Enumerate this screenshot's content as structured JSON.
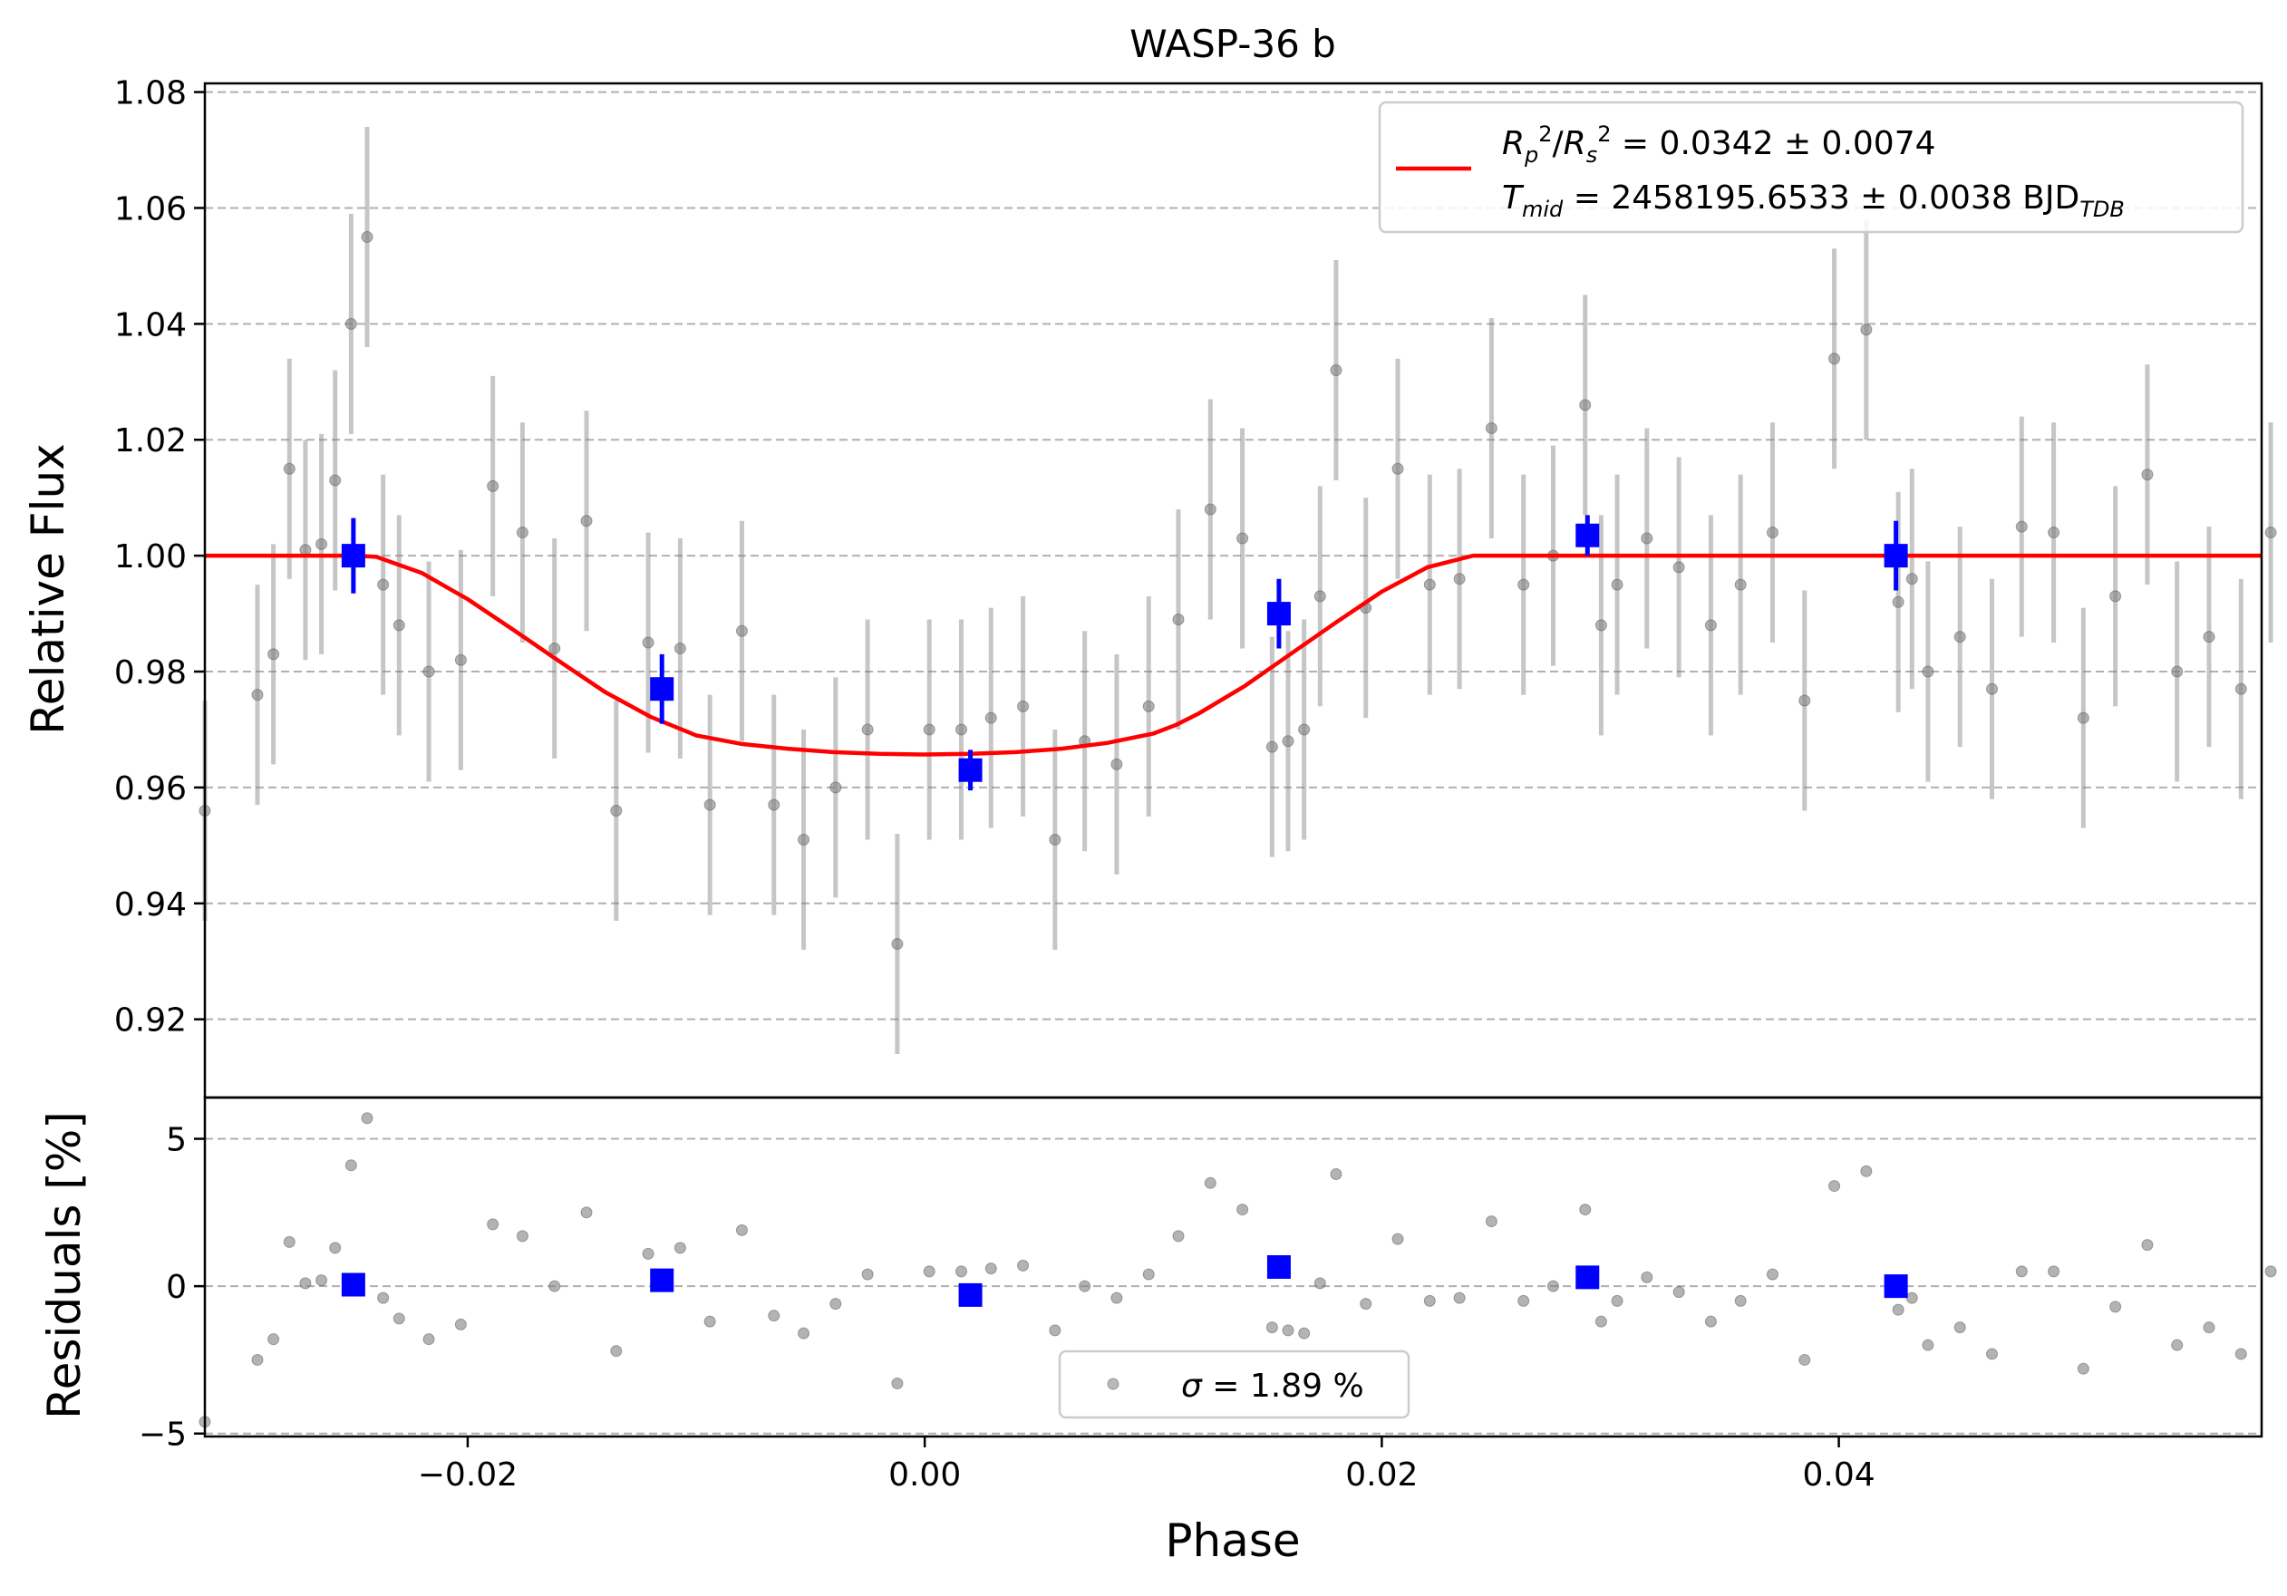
{
  "chart_data": [
    {
      "type": "scatter",
      "title": "WASP-36 b",
      "xlabel": "",
      "ylabel": "Relative Flux",
      "xlim": [
        -0.0315,
        0.0585
      ],
      "ylim": [
        0.9065,
        1.0815
      ],
      "grid": "y-dashed",
      "yticks": [
        0.92,
        0.94,
        0.96,
        0.98,
        1.0,
        1.02,
        1.04,
        1.06,
        1.08
      ],
      "ytick_labels": [
        "0.92",
        "0.94",
        "0.96",
        "0.98",
        "1.00",
        "1.02",
        "1.04",
        "1.06",
        "1.08"
      ],
      "legend_position": "top-right",
      "legend_entries": [
        {
          "line1": {
            "R": "R",
            "p": "p",
            "sq": "2",
            "slash": "/",
            "R2": "R",
            "s": "s",
            "sq2": "2",
            "value": " = 0.0342 ± 0.0074"
          },
          "line2": {
            "T": "T",
            "mid": "mid",
            "value": " = 2458195.6533 ± 0.0038 BJD",
            "tdb": "TDB"
          },
          "color": "#ff0000"
        }
      ],
      "series": [
        {
          "kind": "raw-data",
          "color": "#808080",
          "error": 0.019,
          "x": [
            -0.0315,
            -0.0292,
            -0.0285,
            -0.0278,
            -0.0271,
            -0.0264,
            -0.0258,
            -0.0251,
            -0.0244,
            -0.0237,
            -0.023,
            -0.0217,
            -0.0203,
            -0.0189,
            -0.0176,
            -0.0162,
            -0.0148,
            -0.0135,
            -0.0121,
            -0.0107,
            -0.0094,
            -0.008,
            -0.0066,
            -0.0053,
            -0.0039,
            -0.0025,
            -0.0012,
            0.0002,
            0.0016,
            0.0029,
            0.0043,
            0.0057,
            0.007,
            0.0084,
            0.0098,
            0.0111,
            0.0125,
            0.0139,
            0.0152,
            0.0159,
            0.0166,
            0.0173,
            0.018,
            0.0193,
            0.0207,
            0.0221,
            0.0234,
            0.0248,
            0.0262,
            0.0275,
            0.0289,
            0.0296,
            0.0303,
            0.0316,
            0.033,
            0.0344,
            0.0357,
            0.0371,
            0.0385,
            0.0398,
            0.0412,
            0.0426,
            0.0432,
            0.0439,
            0.0453,
            0.0467,
            0.048,
            0.0494,
            0.0507,
            0.0521,
            0.0535,
            0.0548,
            0.0562,
            0.0576,
            0.0589
          ],
          "y": [
            0.956,
            0.976,
            0.983,
            1.015,
            1.001,
            1.002,
            1.013,
            1.04,
            1.055,
            0.995,
            0.988,
            0.98,
            0.982,
            1.012,
            1.004,
            0.984,
            1.006,
            0.956,
            0.985,
            0.984,
            0.957,
            0.987,
            0.957,
            0.951,
            0.96,
            0.97,
            0.933,
            0.97,
            0.97,
            0.972,
            0.974,
            0.951,
            0.968,
            0.964,
            0.974,
            0.989,
            1.008,
            1.003,
            0.967,
            0.968,
            0.97,
            0.993,
            1.032,
            0.991,
            1.015,
            0.995,
            0.996,
            1.022,
            0.995,
            1.0,
            1.026,
            0.988,
            0.995,
            1.003,
            0.998,
            0.988,
            0.995,
            1.004,
            0.975,
            1.034,
            1.039,
            0.992,
            0.996,
            0.98,
            0.986,
            0.977,
            1.005,
            1.004,
            0.972,
            0.993,
            1.014,
            0.98,
            0.986,
            0.977,
            1.004
          ]
        },
        {
          "kind": "binned",
          "color": "#0000ff",
          "x": [
            -0.025,
            -0.0115,
            0.002,
            0.0155,
            0.029,
            0.0425
          ],
          "y": [
            1.0,
            0.977,
            0.963,
            0.99,
            1.0035,
            1.0
          ],
          "err": [
            0.0065,
            0.006,
            0.0035,
            0.006,
            0.0035,
            0.006
          ]
        },
        {
          "kind": "model",
          "color": "#ff0000",
          "x": [
            -0.0315,
            -0.025,
            -0.024,
            -0.022,
            -0.02,
            -0.018,
            -0.016,
            -0.014,
            -0.012,
            -0.01,
            -0.008,
            -0.006,
            -0.004,
            -0.002,
            0.0,
            0.002,
            0.004,
            0.006,
            0.008,
            0.01,
            0.011,
            0.012,
            0.014,
            0.016,
            0.018,
            0.02,
            0.022,
            0.024,
            0.025,
            0.0585
          ],
          "y": [
            1.0,
            1.0,
            0.9998,
            0.997,
            0.9925,
            0.9872,
            0.9818,
            0.9765,
            0.9722,
            0.969,
            0.9675,
            0.9667,
            0.9661,
            0.9658,
            0.9657,
            0.9658,
            0.9661,
            0.9667,
            0.9677,
            0.9693,
            0.9708,
            0.9728,
            0.9775,
            0.983,
            0.9885,
            0.9938,
            0.998,
            1.0,
            1.0,
            1.0
          ]
        }
      ]
    },
    {
      "type": "scatter",
      "xlabel": "Phase",
      "ylabel": "Residuals [%]",
      "xlim": [
        -0.0315,
        0.0585
      ],
      "ylim": [
        -5.1,
        6.4
      ],
      "grid": "y-dashed",
      "yticks": [
        -5,
        0,
        5
      ],
      "ytick_labels": [
        "−5",
        "0",
        "5"
      ],
      "xticks": [
        -0.02,
        0.0,
        0.02,
        0.04
      ],
      "xtick_labels": [
        "−0.02",
        "0.00",
        "0.02",
        "0.04"
      ],
      "legend_position": "bottom-center",
      "legend_label": {
        "sigma": "σ",
        "value": " = 1.89 %"
      },
      "series": [
        {
          "kind": "residuals",
          "color": "#808080",
          "x": [
            -0.0315,
            -0.0292,
            -0.0285,
            -0.0278,
            -0.0271,
            -0.0264,
            -0.0258,
            -0.0251,
            -0.0244,
            -0.0237,
            -0.023,
            -0.0217,
            -0.0203,
            -0.0189,
            -0.0176,
            -0.0162,
            -0.0148,
            -0.0135,
            -0.0121,
            -0.0107,
            -0.0094,
            -0.008,
            -0.0066,
            -0.0053,
            -0.0039,
            -0.0025,
            -0.0012,
            0.0002,
            0.0016,
            0.0029,
            0.0043,
            0.0057,
            0.007,
            0.0084,
            0.0098,
            0.0111,
            0.0125,
            0.0139,
            0.0152,
            0.0159,
            0.0166,
            0.0173,
            0.018,
            0.0193,
            0.0207,
            0.0221,
            0.0234,
            0.0248,
            0.0262,
            0.0275,
            0.0289,
            0.0296,
            0.0303,
            0.0316,
            0.033,
            0.0344,
            0.0357,
            0.0371,
            0.0385,
            0.0398,
            0.0412,
            0.0426,
            0.0432,
            0.0439,
            0.0453,
            0.0467,
            0.048,
            0.0494,
            0.0507,
            0.0521,
            0.0535,
            0.0548,
            0.0562,
            0.0576,
            0.0589
          ],
          "y": [
            -4.6,
            -2.5,
            -1.8,
            1.5,
            0.1,
            0.2,
            1.3,
            4.1,
            5.7,
            -0.4,
            -1.1,
            -1.8,
            -1.3,
            2.1,
            1.7,
            0.0,
            2.5,
            -2.2,
            1.1,
            1.3,
            -1.2,
            1.9,
            -1.0,
            -1.6,
            -0.6,
            0.4,
            -3.3,
            0.5,
            0.5,
            0.6,
            0.7,
            -1.5,
            0.0,
            -0.4,
            0.4,
            1.7,
            3.5,
            2.6,
            -1.4,
            -1.5,
            -1.6,
            0.1,
            3.8,
            -0.6,
            1.6,
            -0.5,
            -0.4,
            2.2,
            -0.5,
            0.0,
            2.6,
            -1.2,
            -0.5,
            0.3,
            -0.2,
            -1.2,
            -0.5,
            0.4,
            -2.5,
            3.4,
            3.9,
            -0.8,
            -0.4,
            -2.0,
            -1.4,
            -2.3,
            0.5,
            0.5,
            -2.8,
            -0.7,
            1.4,
            -2.0,
            -1.4,
            -2.3,
            0.5
          ]
        },
        {
          "kind": "binned",
          "color": "#0000ff",
          "x": [
            -0.025,
            -0.0115,
            0.002,
            0.0155,
            0.029,
            0.0425
          ],
          "y": [
            0.05,
            0.2,
            -0.3,
            0.65,
            0.3,
            0.0
          ]
        }
      ]
    }
  ]
}
